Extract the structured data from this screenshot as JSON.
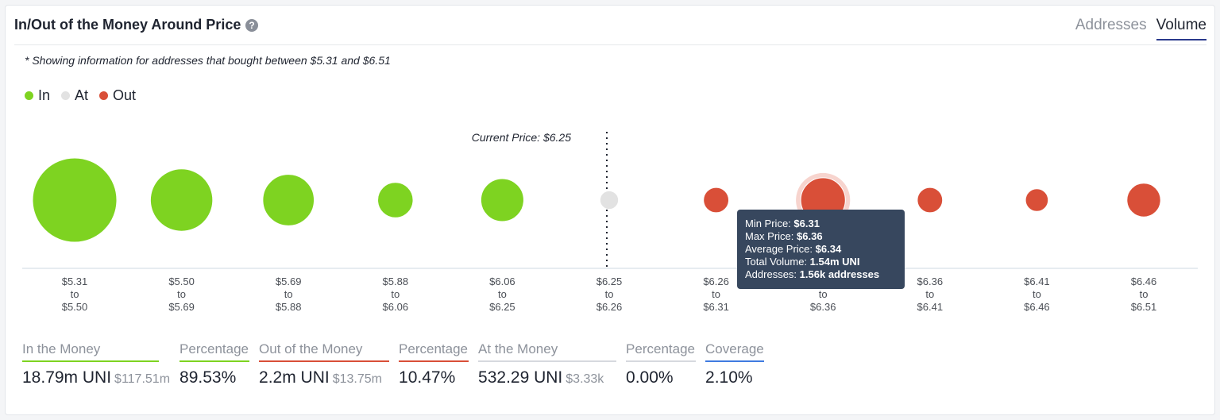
{
  "header": {
    "title": "In/Out of the Money Around Price",
    "help_icon": "question-circle-icon",
    "tabs": [
      {
        "label": "Addresses",
        "active": false
      },
      {
        "label": "Volume",
        "active": true
      }
    ]
  },
  "note": "* Showing information for addresses that bought between $5.31 and $6.51",
  "legend": [
    {
      "label": "In",
      "color": "#7ed321"
    },
    {
      "label": "At",
      "color": "#e2e2e2"
    },
    {
      "label": "Out",
      "color": "#d94f38"
    }
  ],
  "chart_data": {
    "type": "scatter",
    "current_price_label": "Current Price: $6.25",
    "current_price_bucket_index": 5,
    "buckets": [
      {
        "from": "$5.31",
        "sep": "to",
        "to": "$5.50",
        "status": "in",
        "rel_size": 1.0
      },
      {
        "from": "$5.50",
        "sep": "to",
        "to": "$5.69",
        "status": "in",
        "rel_size": 0.74
      },
      {
        "from": "$5.69",
        "sep": "to",
        "to": "$5.88",
        "status": "in",
        "rel_size": 0.61
      },
      {
        "from": "$5.88",
        "sep": "to",
        "to": "$6.06",
        "status": "in",
        "rel_size": 0.42
      },
      {
        "from": "$6.06",
        "sep": "to",
        "to": "$6.25",
        "status": "in",
        "rel_size": 0.51
      },
      {
        "from": "$6.25",
        "sep": "to",
        "to": "$6.26",
        "status": "at",
        "rel_size": 0.22
      },
      {
        "from": "$6.26",
        "sep": "to",
        "to": "$6.31",
        "status": "out",
        "rel_size": 0.3
      },
      {
        "from": "$6.31",
        "sep": "to",
        "to": "$6.36",
        "status": "out",
        "rel_size": 0.53
      },
      {
        "from": "$6.36",
        "sep": "to",
        "to": "$6.41",
        "status": "out",
        "rel_size": 0.3
      },
      {
        "from": "$6.41",
        "sep": "to",
        "to": "$6.46",
        "status": "out",
        "rel_size": 0.27
      },
      {
        "from": "$6.46",
        "sep": "to",
        "to": "$6.51",
        "status": "out",
        "rel_size": 0.4
      }
    ],
    "highlight_index": 7
  },
  "tooltip": {
    "min_label": "Min Price:",
    "min_value": "$6.31",
    "max_label": "Max Price:",
    "max_value": "$6.36",
    "avg_label": "Average Price:",
    "avg_value": "$6.34",
    "vol_label": "Total Volume:",
    "vol_value": "1.54m UNI",
    "addr_label": "Addresses:",
    "addr_value": "1.56k addresses"
  },
  "stats": [
    {
      "label": "In the Money",
      "value": "18.79m UNI",
      "sub": "$117.51m",
      "color": "#7ed321"
    },
    {
      "label": "Percentage",
      "value": "89.53%",
      "sub": "",
      "color": "#7ed321"
    },
    {
      "label": "Out of the Money",
      "value": "2.2m UNI",
      "sub": "$13.75m",
      "color": "#d94f38"
    },
    {
      "label": "Percentage",
      "value": "10.47%",
      "sub": "",
      "color": "#d94f38"
    },
    {
      "label": "At the Money",
      "value": "532.29 UNI",
      "sub": "$3.33k",
      "color": "#d6d9de"
    },
    {
      "label": "Percentage",
      "value": "0.00%",
      "sub": "",
      "color": "#d6d9de"
    },
    {
      "label": "Coverage",
      "value": "2.10%",
      "sub": "",
      "color": "#3f7be0"
    }
  ]
}
